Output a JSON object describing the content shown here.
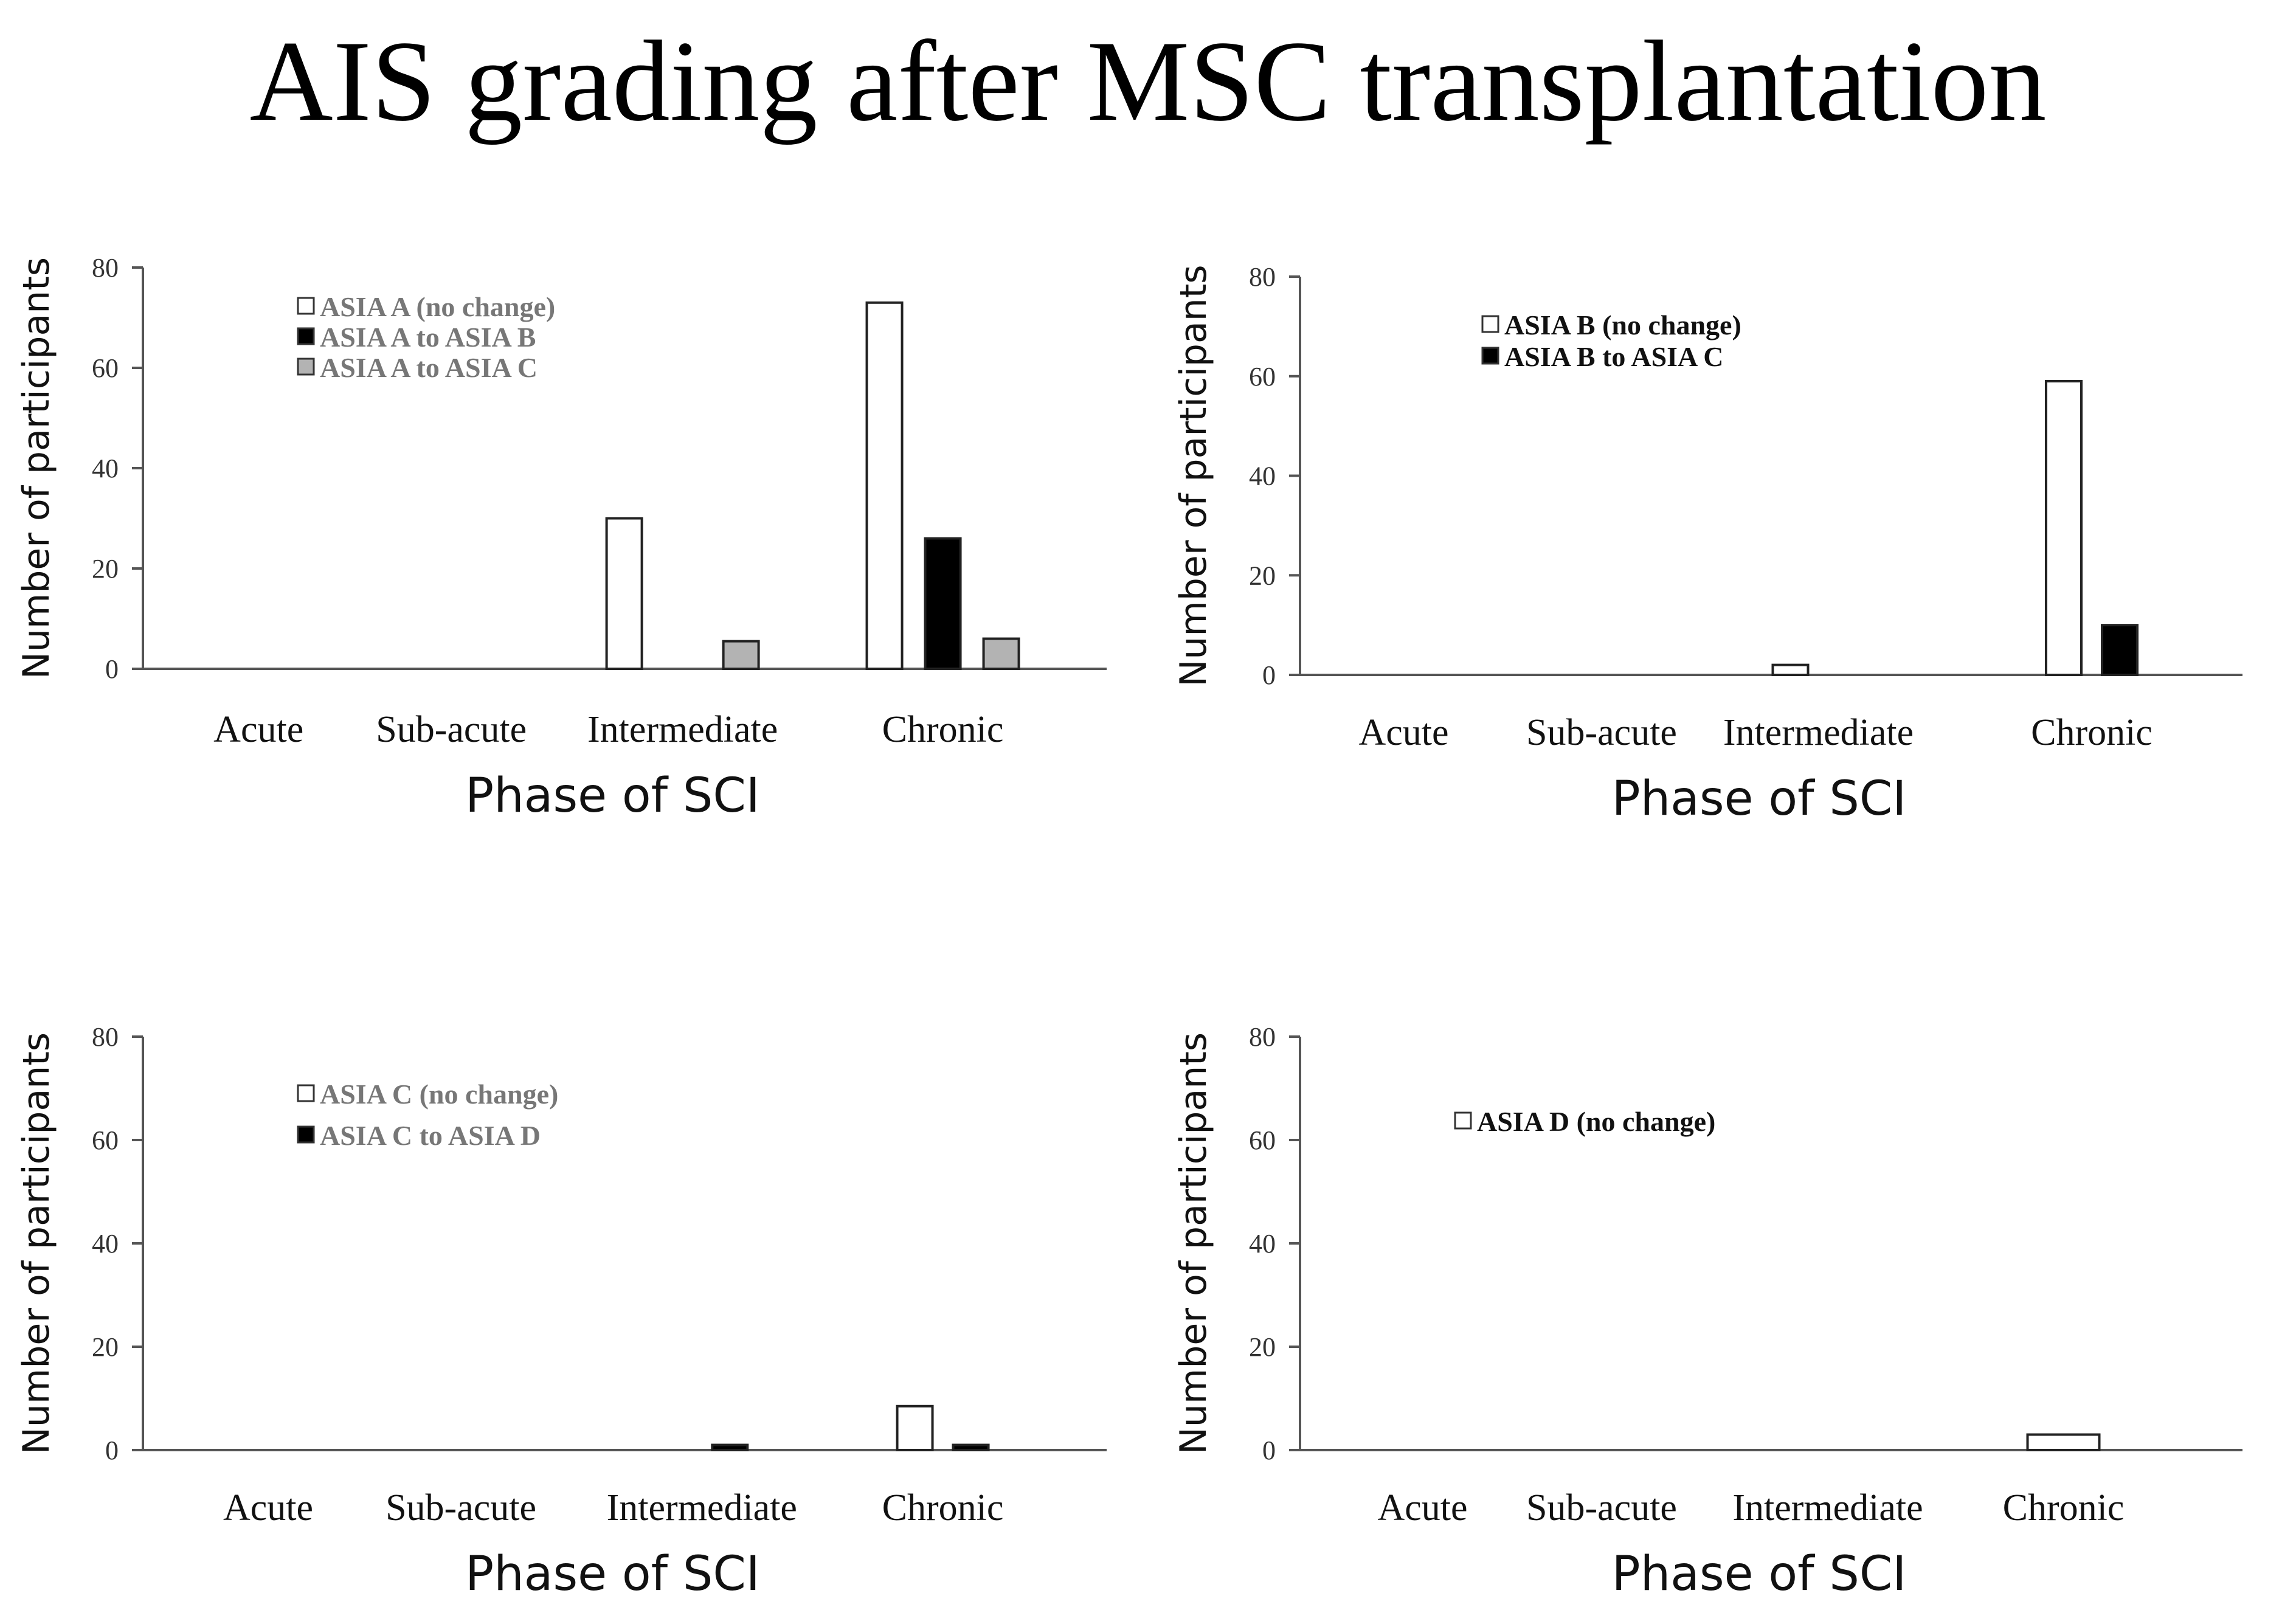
{
  "title": "AIS grading after MSC transplantation",
  "colors": {
    "white": "#ffffff",
    "black": "#000000",
    "gray": "#b3b3b3",
    "axis": "#555555"
  },
  "chart_data": [
    {
      "type": "bar",
      "panel": "top-left",
      "categories": [
        "Acute",
        "Sub-acute",
        "Intermediate",
        "Chronic"
      ],
      "xlabel": "Phase of SCI",
      "ylabel": "Number of participants",
      "ylim": [
        0,
        80
      ],
      "yticks": [
        0,
        20,
        40,
        60,
        80
      ],
      "legend_position": "top-left",
      "legend_text_color": "#777777",
      "series": [
        {
          "name": "ASIA A (no change)",
          "color": "#ffffff",
          "values": [
            0,
            0,
            30,
            73
          ]
        },
        {
          "name": "ASIA A to ASIA B",
          "color": "#000000",
          "values": [
            0,
            0,
            0,
            26
          ]
        },
        {
          "name": "ASIA A to ASIA C",
          "color": "#b3b3b3",
          "values": [
            0,
            0,
            5.5,
            6
          ]
        }
      ]
    },
    {
      "type": "bar",
      "panel": "top-right",
      "categories": [
        "Acute",
        "Sub-acute",
        "Intermediate",
        "Chronic"
      ],
      "xlabel": "Phase of SCI",
      "ylabel": "Number of participants",
      "ylim": [
        0,
        80
      ],
      "yticks": [
        0,
        20,
        40,
        60,
        80
      ],
      "legend_position": "top-left",
      "legend_text_color": "#111111",
      "series": [
        {
          "name": "ASIA B (no change)",
          "color": "#ffffff",
          "values": [
            0,
            0,
            2,
            59
          ]
        },
        {
          "name": "ASIA B to ASIA C",
          "color": "#000000",
          "values": [
            0,
            0,
            0,
            10
          ]
        }
      ]
    },
    {
      "type": "bar",
      "panel": "bottom-left",
      "categories": [
        "Acute",
        "Sub-acute",
        "Intermediate",
        "Chronic"
      ],
      "xlabel": "Phase of SCI",
      "ylabel": "Number of participants",
      "ylim": [
        0,
        80
      ],
      "yticks": [
        0,
        20,
        40,
        60,
        80
      ],
      "legend_position": "top-left",
      "legend_text_color": "#777777",
      "series": [
        {
          "name": "ASIA C (no change)",
          "color": "#ffffff",
          "values": [
            0,
            0,
            0,
            8.5
          ]
        },
        {
          "name": "ASIA C to ASIA D",
          "color": "#000000",
          "values": [
            0,
            0,
            1,
            1
          ]
        }
      ]
    },
    {
      "type": "bar",
      "panel": "bottom-right",
      "categories": [
        "Acute",
        "Sub-acute",
        "Intermediate",
        "Chronic"
      ],
      "xlabel": "Phase of SCI",
      "ylabel": "Number of participants",
      "ylim": [
        0,
        80
      ],
      "yticks": [
        0,
        20,
        40,
        60,
        80
      ],
      "legend_position": "top-left",
      "legend_text_color": "#111111",
      "series": [
        {
          "name": "ASIA D (no change)",
          "color": "#ffffff",
          "values": [
            0,
            0,
            0,
            3
          ]
        }
      ]
    }
  ]
}
